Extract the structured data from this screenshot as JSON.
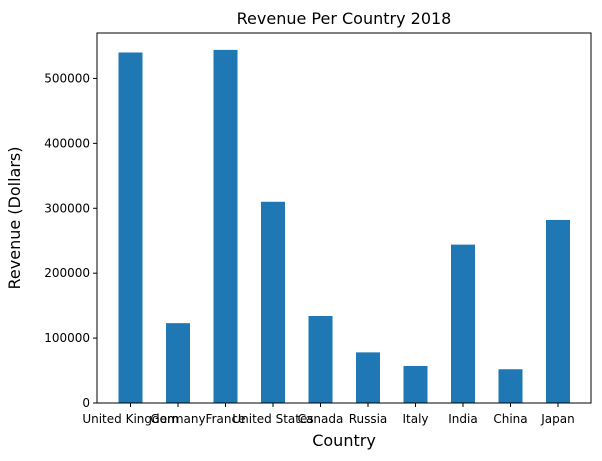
{
  "chart_data": {
    "type": "bar",
    "title": "Revenue Per Country 2018",
    "xlabel": "Country",
    "ylabel": "Revenue (Dollars)",
    "categories": [
      "United Kingdom",
      "Germany",
      "France",
      "United States",
      "Canada",
      "Russia",
      "Italy",
      "India",
      "China",
      "Japan"
    ],
    "values": [
      540000,
      123000,
      544000,
      310000,
      134000,
      78000,
      57000,
      244000,
      52000,
      282000
    ],
    "yticks": [
      0,
      100000,
      200000,
      300000,
      400000,
      500000
    ],
    "ylim": [
      0,
      570000
    ],
    "grid": false,
    "bar_color": "#1f77b4"
  }
}
